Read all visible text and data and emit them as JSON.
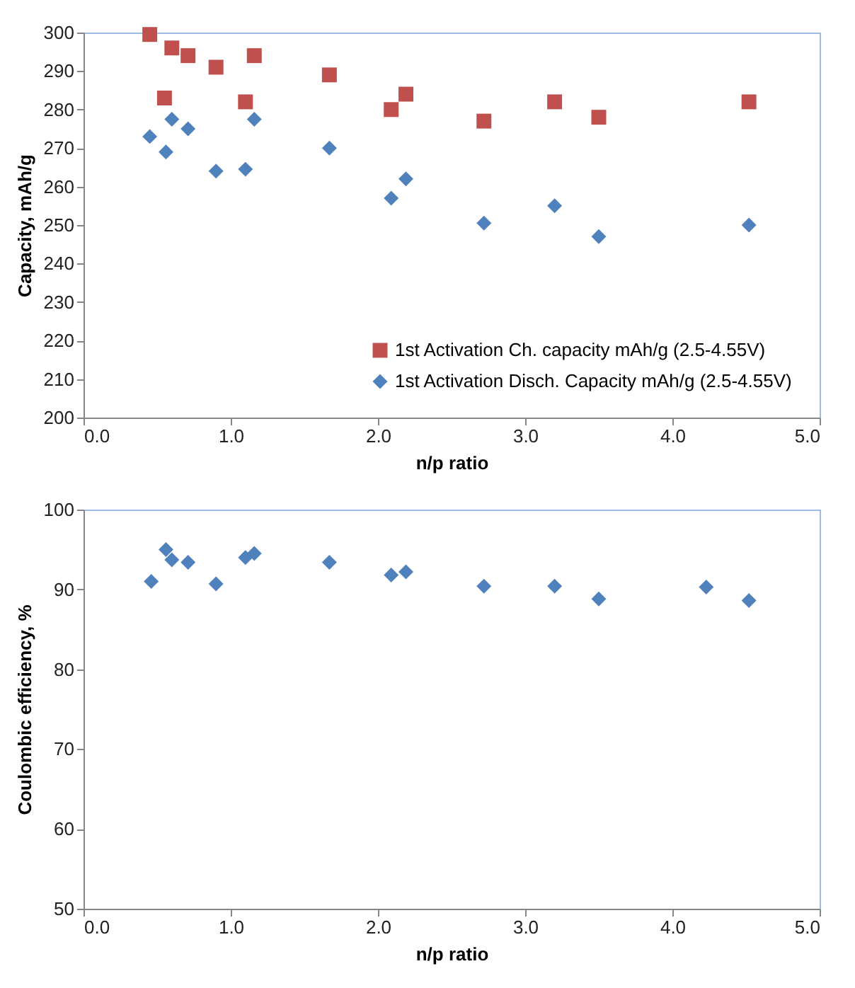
{
  "chart_data": [
    {
      "type": "scatter",
      "xlabel": "n/p ratio",
      "ylabel": "Capacity, mAh/g",
      "xlim": [
        0,
        5
      ],
      "ylim": [
        200,
        300
      ],
      "xticks": [
        {
          "value": 0,
          "label": "0.0"
        },
        {
          "value": 1,
          "label": "1.0"
        },
        {
          "value": 2,
          "label": "2.0"
        },
        {
          "value": 3,
          "label": "3.0"
        },
        {
          "value": 4,
          "label": "4.0"
        },
        {
          "value": 5,
          "label": "5.0"
        }
      ],
      "yticks": [
        200,
        210,
        220,
        230,
        240,
        250,
        260,
        270,
        280,
        290,
        300
      ],
      "grid": false,
      "legend": "bottom right",
      "series": [
        {
          "name": "1st Activation Ch. capacity mAh/g (2.5-4.55V)",
          "color": "#c0504d",
          "marker": "square",
          "x": [
            0.45,
            0.55,
            0.6,
            0.71,
            0.9,
            1.1,
            1.16,
            1.67,
            2.09,
            2.19,
            2.72,
            3.2,
            3.5,
            4.52
          ],
          "values": [
            299.5,
            283,
            296,
            294,
            291,
            282,
            294,
            289,
            280,
            284,
            277,
            282,
            278,
            282
          ]
        },
        {
          "name": "1st Activation Disch. Capacity mAh/g (2.5-4.55V)",
          "color": "#4f81bd",
          "marker": "diamond",
          "x": [
            0.45,
            0.56,
            0.6,
            0.71,
            0.9,
            1.1,
            1.16,
            1.67,
            2.09,
            2.19,
            2.72,
            3.2,
            3.5,
            4.52
          ],
          "values": [
            273,
            269,
            277.5,
            275,
            264,
            264.5,
            277.5,
            270,
            257,
            262,
            250.5,
            255,
            247,
            250
          ]
        }
      ]
    },
    {
      "type": "scatter",
      "xlabel": "n/p ratio",
      "ylabel": "Coulombic efficiency, %",
      "xlim": [
        0,
        5
      ],
      "ylim": [
        50,
        100
      ],
      "xticks": [
        {
          "value": 0,
          "label": "0.0"
        },
        {
          "value": 1,
          "label": "1.0"
        },
        {
          "value": 2,
          "label": "2.0"
        },
        {
          "value": 3,
          "label": "3.0"
        },
        {
          "value": 4,
          "label": "4.0"
        },
        {
          "value": 5,
          "label": "5.0"
        }
      ],
      "yticks": [
        50,
        60,
        70,
        80,
        90,
        100
      ],
      "grid": false,
      "legend": false,
      "series": [
        {
          "color": "#4f81bd",
          "marker": "diamond",
          "x": [
            0.46,
            0.56,
            0.6,
            0.71,
            0.9,
            1.1,
            1.16,
            1.67,
            2.09,
            2.19,
            2.72,
            3.2,
            3.5,
            4.23,
            4.52
          ],
          "values": [
            91,
            95,
            93.7,
            93.4,
            90.7,
            94,
            94.5,
            93.4,
            91.8,
            92.2,
            90.4,
            90.4,
            88.8,
            90.3,
            88.6
          ]
        }
      ]
    }
  ]
}
